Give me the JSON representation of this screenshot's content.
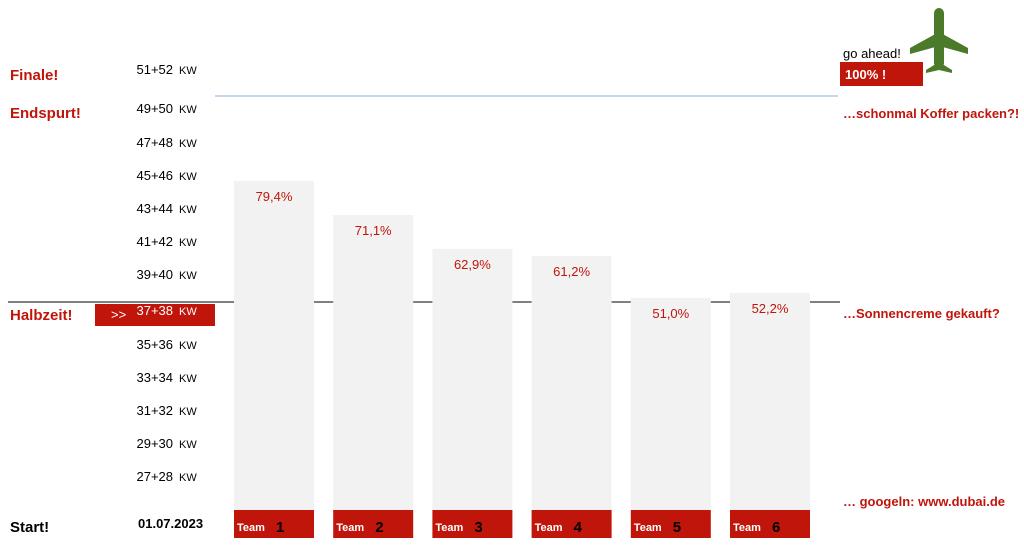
{
  "stages": {
    "finale": "Finale!",
    "endspurt": "Endspurt!",
    "halbzeit": "Halbzeit!",
    "start": "Start!"
  },
  "start_date": "01.07.2023",
  "kw_unit": "KW",
  "current_marker": ">>",
  "notes": {
    "go_ahead": "go ahead!",
    "hundred": "100% !",
    "koffer": "…schonmal Koffer packen?!",
    "sonnencreme": "…Sonnencreme gekauft?",
    "googeln": "… googeln:  www.dubai.de"
  },
  "colors": {
    "accent": "#c0150b",
    "bar": "#f2f2f2",
    "plane": "#4b7a2b",
    "goal_line": "#8fb0d8"
  },
  "icons": {
    "plane": "airplane-icon"
  },
  "chart_data": {
    "type": "bar",
    "categories": [
      "Team 1",
      "Team 2",
      "Team 3",
      "Team 4",
      "Team 5",
      "Team 6"
    ],
    "team_word": "Team",
    "team_numbers": [
      "1",
      "2",
      "3",
      "4",
      "5",
      "6"
    ],
    "values": [
      79.4,
      71.1,
      62.9,
      61.2,
      51.0,
      52.2
    ],
    "value_labels": [
      "79,4%",
      "71,1%",
      "62,9%",
      "61,2%",
      "51,0%",
      "52,2%"
    ],
    "ylim": [
      0,
      100
    ],
    "y_ticks": [
      "27+28",
      "29+30",
      "31+32",
      "33+34",
      "35+36",
      "37+38",
      "39+40",
      "41+42",
      "43+44",
      "45+46",
      "47+48",
      "49+50",
      "51+52"
    ],
    "current_tick": "37+38",
    "reference_lines": [
      50,
      100
    ],
    "grid": false,
    "legend": "none"
  }
}
